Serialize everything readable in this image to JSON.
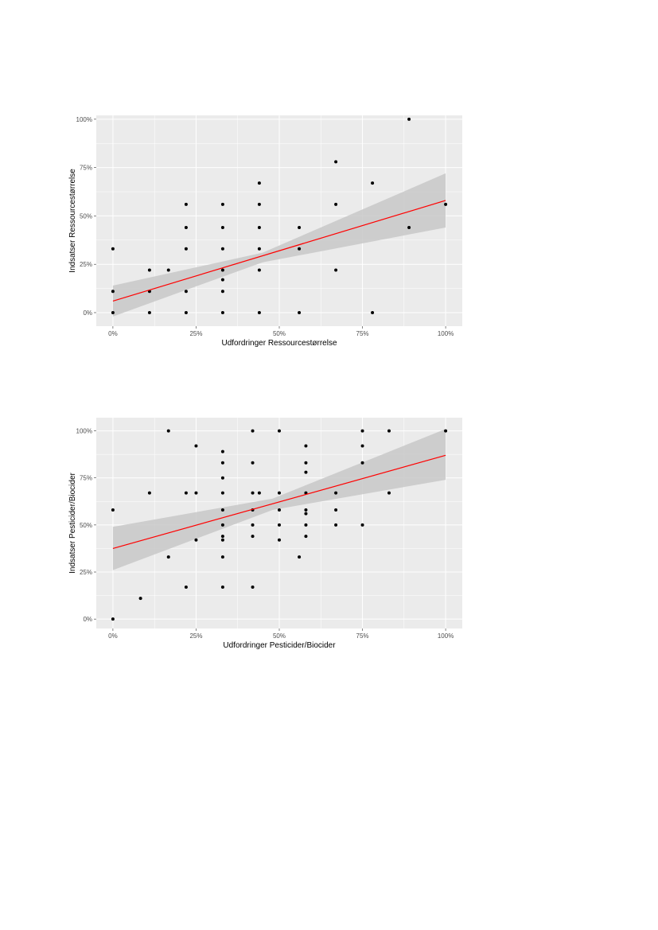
{
  "chart_data": [
    {
      "type": "scatter",
      "title": "",
      "xlabel": "Udfordringer Ressourcestørrelse",
      "ylabel": "Indsatser Ressourcestørrelse",
      "xlim": [
        -0.05,
        1.05
      ],
      "ylim": [
        -0.07,
        1.02
      ],
      "x_ticks": [
        "0%",
        "25%",
        "50%",
        "75%",
        "100%"
      ],
      "y_ticks": [
        "0%",
        "25%",
        "50%",
        "75%",
        "100%"
      ],
      "tick_values": [
        0,
        0.25,
        0.5,
        0.75,
        1
      ],
      "grid": true,
      "legend": "none",
      "points": [
        [
          0,
          0
        ],
        [
          0,
          0.11
        ],
        [
          0,
          0.33
        ],
        [
          0.11,
          0
        ],
        [
          0.11,
          0.11
        ],
        [
          0.11,
          0.22
        ],
        [
          0.167,
          0.22
        ],
        [
          0.22,
          0
        ],
        [
          0.22,
          0.11
        ],
        [
          0.22,
          0.33
        ],
        [
          0.22,
          0.44
        ],
        [
          0.22,
          0.56
        ],
        [
          0.33,
          0
        ],
        [
          0.33,
          0.11
        ],
        [
          0.33,
          0.17
        ],
        [
          0.33,
          0.22
        ],
        [
          0.33,
          0.33
        ],
        [
          0.33,
          0.44
        ],
        [
          0.33,
          0.56
        ],
        [
          0.44,
          0
        ],
        [
          0.44,
          0.22
        ],
        [
          0.44,
          0.33
        ],
        [
          0.44,
          0.44
        ],
        [
          0.44,
          0.56
        ],
        [
          0.44,
          0.67
        ],
        [
          0.56,
          0
        ],
        [
          0.56,
          0.33
        ],
        [
          0.56,
          0.44
        ],
        [
          0.67,
          0.22
        ],
        [
          0.67,
          0.56
        ],
        [
          0.67,
          0.78
        ],
        [
          0.78,
          0
        ],
        [
          0.78,
          0.67
        ],
        [
          0.89,
          0.44
        ],
        [
          0.89,
          1.0
        ],
        [
          1.0,
          0.56
        ]
      ],
      "regression": {
        "x": [
          0,
          1
        ],
        "y": [
          0.06,
          0.58
        ]
      },
      "confidence_band": {
        "x": [
          0,
          0.45,
          1
        ],
        "lower": [
          -0.02,
          0.26,
          0.44
        ],
        "upper": [
          0.14,
          0.31,
          0.72
        ]
      },
      "colors": {
        "panel": "#ebebeb",
        "grid": "#ffffff",
        "point": "#000000",
        "line": "#ff0000",
        "band": "#c8c8c8"
      }
    },
    {
      "type": "scatter",
      "title": "",
      "xlabel": "Udfordringer Pesticider/Biocider",
      "ylabel": "Indsatser Pesticider/Biocider",
      "xlim": [
        -0.05,
        1.05
      ],
      "ylim": [
        -0.05,
        1.07
      ],
      "x_ticks": [
        "0%",
        "25%",
        "50%",
        "75%",
        "100%"
      ],
      "y_ticks": [
        "0%",
        "25%",
        "50%",
        "75%",
        "100%"
      ],
      "tick_values": [
        0,
        0.25,
        0.5,
        0.75,
        1
      ],
      "grid": true,
      "legend": "none",
      "points": [
        [
          0,
          0
        ],
        [
          0,
          0.58
        ],
        [
          0.083,
          0.11
        ],
        [
          0.11,
          0.67
        ],
        [
          0.167,
          0.33
        ],
        [
          0.167,
          1.0
        ],
        [
          0.22,
          0.17
        ],
        [
          0.22,
          0.67
        ],
        [
          0.25,
          0.42
        ],
        [
          0.25,
          0.67
        ],
        [
          0.25,
          0.92
        ],
        [
          0.33,
          0.17
        ],
        [
          0.33,
          0.33
        ],
        [
          0.33,
          0.42
        ],
        [
          0.33,
          0.44
        ],
        [
          0.33,
          0.5
        ],
        [
          0.33,
          0.58
        ],
        [
          0.33,
          0.67
        ],
        [
          0.33,
          0.75
        ],
        [
          0.33,
          0.83
        ],
        [
          0.33,
          0.89
        ],
        [
          0.42,
          0.17
        ],
        [
          0.42,
          0.44
        ],
        [
          0.42,
          0.5
        ],
        [
          0.42,
          0.58
        ],
        [
          0.42,
          0.67
        ],
        [
          0.42,
          0.83
        ],
        [
          0.42,
          1.0
        ],
        [
          0.44,
          0.67
        ],
        [
          0.5,
          0.42
        ],
        [
          0.5,
          0.5
        ],
        [
          0.5,
          0.58
        ],
        [
          0.5,
          0.67
        ],
        [
          0.5,
          1.0
        ],
        [
          0.56,
          0.33
        ],
        [
          0.58,
          0.44
        ],
        [
          0.58,
          0.5
        ],
        [
          0.58,
          0.56
        ],
        [
          0.58,
          0.58
        ],
        [
          0.58,
          0.67
        ],
        [
          0.58,
          0.78
        ],
        [
          0.58,
          0.83
        ],
        [
          0.58,
          0.92
        ],
        [
          0.67,
          0.5
        ],
        [
          0.67,
          0.58
        ],
        [
          0.67,
          0.67
        ],
        [
          0.75,
          0.5
        ],
        [
          0.75,
          0.83
        ],
        [
          0.75,
          0.92
        ],
        [
          0.75,
          1.0
        ],
        [
          0.83,
          0.67
        ],
        [
          0.83,
          1.0
        ],
        [
          1.0,
          1.0
        ]
      ],
      "regression": {
        "x": [
          0,
          1
        ],
        "y": [
          0.375,
          0.87
        ]
      },
      "confidence_band": {
        "x": [
          0,
          0.48,
          1
        ],
        "lower": [
          0.26,
          0.58,
          0.74
        ],
        "upper": [
          0.49,
          0.64,
          1.01
        ]
      },
      "colors": {
        "panel": "#ebebeb",
        "grid": "#ffffff",
        "point": "#000000",
        "line": "#ff0000",
        "band": "#c8c8c8"
      }
    }
  ]
}
